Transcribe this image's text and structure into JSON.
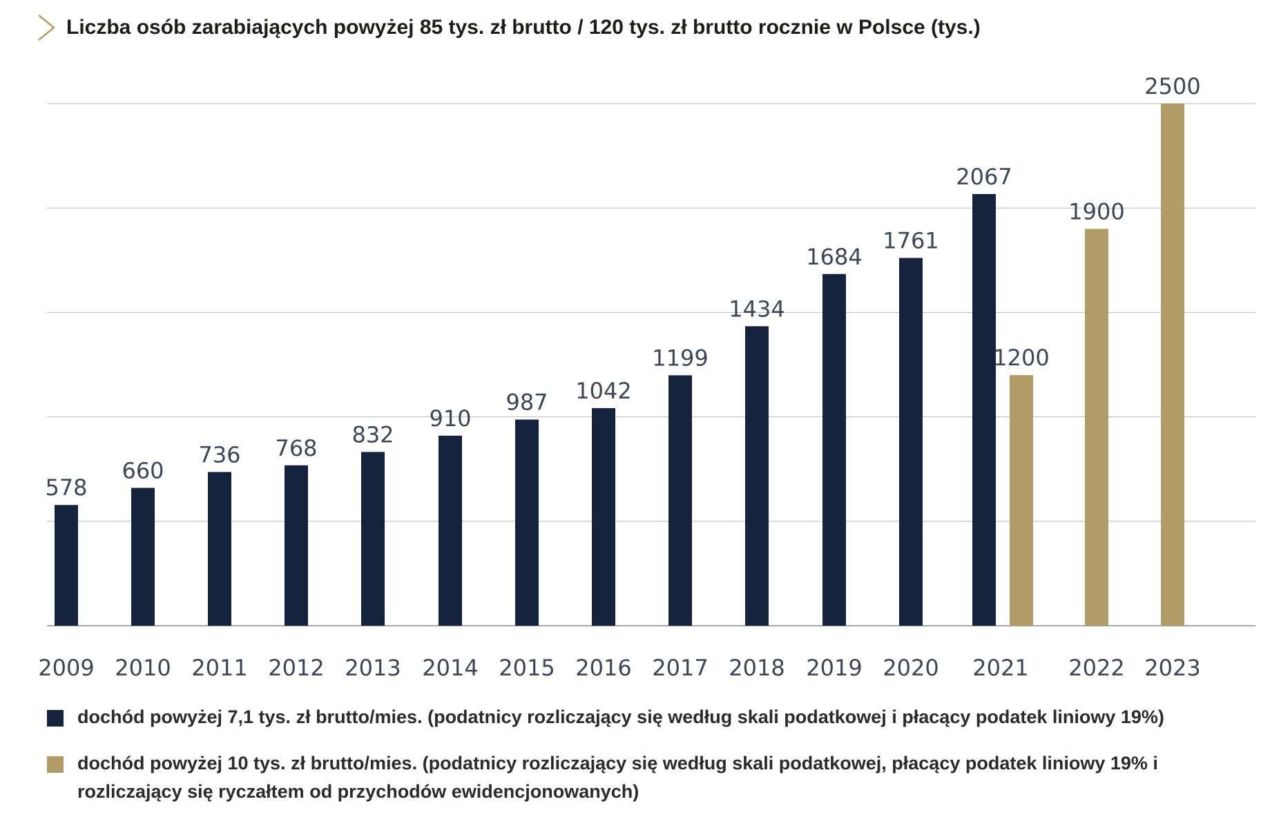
{
  "header": {
    "title": "Liczba osób zarabiających powyżej 85 tys. zł brutto / 120 tys. zł brutto rocznie w Polsce (tys.)"
  },
  "colors": {
    "navy": "#15223b",
    "gold": "#b19b66",
    "grid": "#b8b8b8",
    "label": "#3c4654",
    "accent": "#b19b66"
  },
  "chart_data": {
    "type": "bar",
    "title": "Liczba osób zarabiających powyżej 85 tys. zł brutto / 120 tys. zł brutto rocznie w Polsce (tys.)",
    "categories": [
      "2009",
      "2010",
      "2011",
      "2012",
      "2013",
      "2014",
      "2015",
      "2016",
      "2017",
      "2018",
      "2019",
      "2020",
      "2021",
      "2022",
      "2023"
    ],
    "series": [
      {
        "name": "dochód powyżej 7,1 tys. zł brutto/mies. (podatnicy rozliczający się według skali podatkowej i płacący podatek liniowy 19%)",
        "color": "#15223b",
        "values": [
          578,
          660,
          736,
          768,
          832,
          910,
          987,
          1042,
          1199,
          1434,
          1684,
          1761,
          2067,
          null,
          null
        ]
      },
      {
        "name": "dochód powyżej 10 tys. zł brutto/mies. (podatnicy rozliczający się według skali podatkowej, płacący podatek liniowy 19% i rozliczający się ryczałtem od przychodów ewidencjonowanych)",
        "color": "#b19b66",
        "values": [
          null,
          null,
          null,
          null,
          null,
          null,
          null,
          null,
          null,
          null,
          null,
          null,
          1200,
          1900,
          2500
        ]
      }
    ],
    "ylim": [
      0,
      2500
    ],
    "grid": true,
    "legend_position": "bottom",
    "xlabel": "",
    "ylabel": ""
  }
}
